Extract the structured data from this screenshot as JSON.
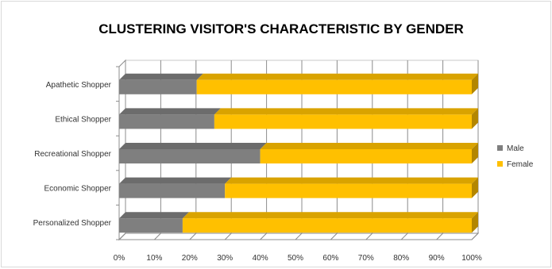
{
  "chart_data": {
    "type": "bar",
    "orientation": "horizontal",
    "stacked": true,
    "percent_stacked": true,
    "three_d": true,
    "title": "CLUSTERING VISITOR'S CHARACTERISTIC BY GENDER",
    "xlabel": "",
    "ylabel": "",
    "categories": [
      "Apathetic Shopper",
      "Ethical Shopper",
      "Recreational Shopper",
      "Economic Shopper",
      "Personalized Shopper"
    ],
    "series": [
      {
        "name": "Male",
        "values": [
          22,
          27,
          40,
          30,
          18
        ],
        "color": "#7f7f7f"
      },
      {
        "name": "Female",
        "values": [
          78,
          73,
          60,
          70,
          82
        ],
        "color": "#ffc000"
      }
    ],
    "xlim": [
      0,
      100
    ],
    "xticks": [
      "0%",
      "10%",
      "20%",
      "30%",
      "40%",
      "50%",
      "60%",
      "70%",
      "80%",
      "90%",
      "100%"
    ],
    "grid": true,
    "legend_position": "right"
  }
}
